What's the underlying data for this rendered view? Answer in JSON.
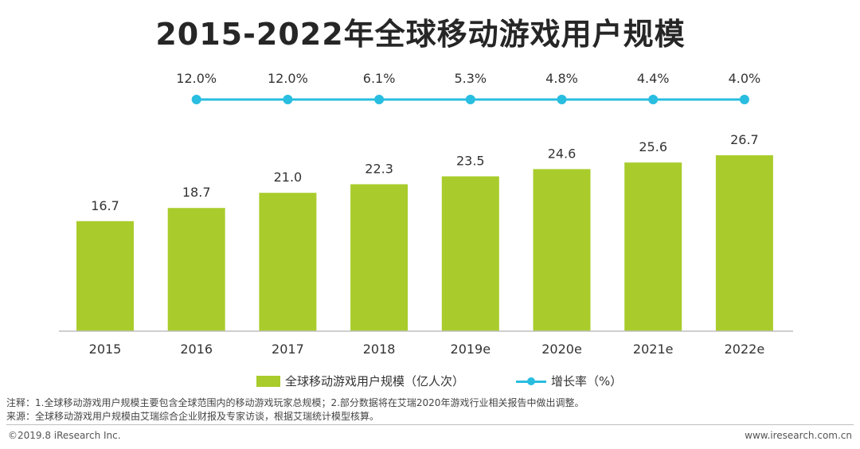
{
  "title": "2015-2022年全球移动游戏用户规模",
  "chart_data": {
    "type": "bar",
    "categories": [
      "2015",
      "2016",
      "2017",
      "2018",
      "2019e",
      "2020e",
      "2021e",
      "2022e"
    ],
    "series": [
      {
        "name": "全球移动游戏用户规模（亿人次）",
        "kind": "bar",
        "values": [
          16.7,
          18.7,
          21.0,
          22.3,
          23.5,
          24.6,
          25.6,
          26.7
        ],
        "labels": [
          "16.7",
          "18.7",
          "21.0",
          "22.3",
          "23.5",
          "24.6",
          "25.6",
          "26.7"
        ]
      },
      {
        "name": "增长率（%）",
        "kind": "line",
        "values": [
          12.0,
          12.0,
          6.1,
          5.3,
          4.8,
          4.4,
          4.0
        ],
        "x": [
          "2016",
          "2017",
          "2018",
          "2019e",
          "2020e",
          "2021e",
          "2022e"
        ],
        "labels": [
          "12.0%",
          "12.0%",
          "6.1%",
          "5.3%",
          "4.8%",
          "4.4%",
          "4.0%"
        ]
      }
    ],
    "ylim": [
      0,
      29
    ],
    "grid": false,
    "legend_position": "bottom",
    "colors": {
      "bar": "#a9cc2c",
      "line": "#29bde0",
      "axis": "#bfbfbf"
    }
  },
  "notes": {
    "note": "注释：1.全球移动游戏用户规模主要包含全球范围内的移动游戏玩家总规模；2.部分数据将在艾瑞2020年游戏行业相关报告中做出调整。",
    "source": "来源：全球移动游戏用户规模由艾瑞综合企业财报及专家访谈，根据艾瑞统计模型核算。"
  },
  "footer": {
    "copyright": "©2019.8 iResearch Inc.",
    "website": "www.iresearch.com.cn"
  }
}
